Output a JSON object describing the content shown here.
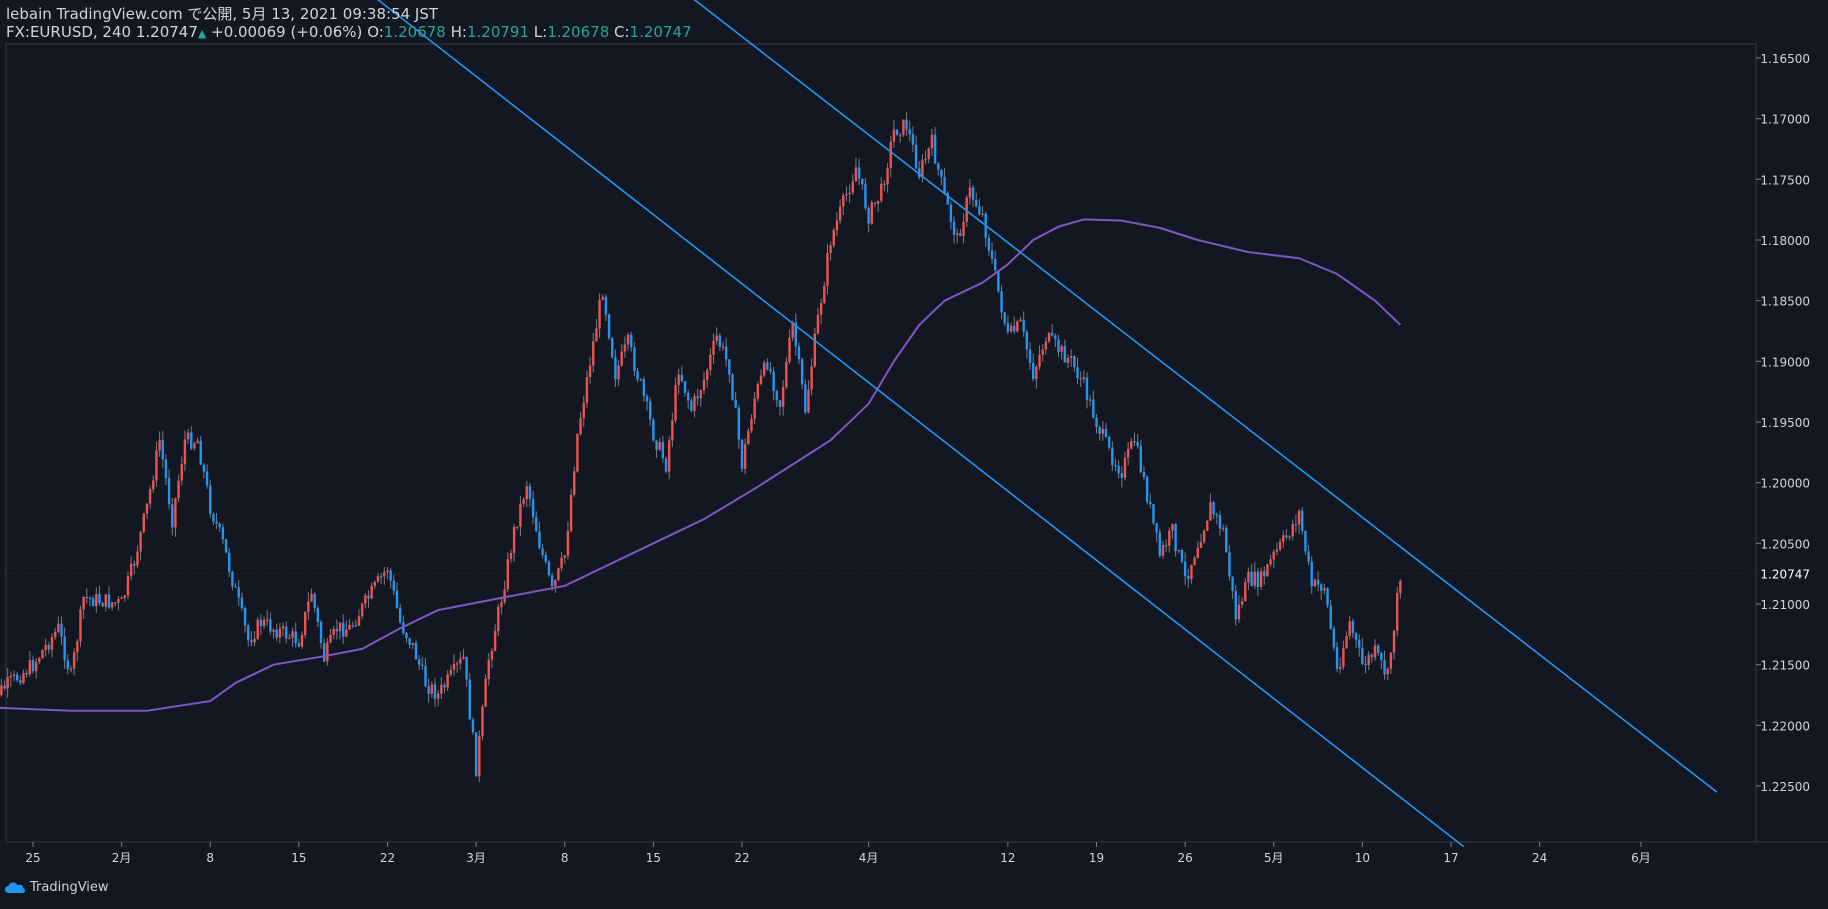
{
  "header": {
    "line1": "lebain TradingView.com で公開, 5月 13, 2021 09:38:54 JST",
    "symbol": "FX:EURUSD, 240",
    "last": "1.20747",
    "change": "+0.00069 (+0.06%)",
    "o_label": "O:",
    "o_value": "1.20678",
    "h_label": "H:",
    "h_value": "1.20791",
    "l_label": "L:",
    "l_value": "1.20678",
    "c_label": "C:",
    "c_value": "1.20747"
  },
  "footer": {
    "brand": "TradingView"
  },
  "colors": {
    "up": "#ef5350",
    "down": "#2196f3",
    "ma": "#7e57c2",
    "trend": "#2196f3",
    "bg": "#131722",
    "price_tag": "#131722"
  },
  "chart_data": {
    "type": "candlestick",
    "y_axis": {
      "min": 1.16,
      "max": 1.23,
      "inverted": true,
      "ticks": [
        "1.16500",
        "1.17000",
        "1.17500",
        "1.18000",
        "1.18500",
        "1.19000",
        "1.19500",
        "1.20000",
        "1.20500",
        "1.21000",
        "1.21500",
        "1.22000",
        "1.22500"
      ]
    },
    "current_price": "1.20747",
    "x_axis": {
      "labels": [
        {
          "label": "25",
          "date": "2021-01-25"
        },
        {
          "label": "2月",
          "date": "2021-02-01"
        },
        {
          "label": "8",
          "date": "2021-02-08"
        },
        {
          "label": "15",
          "date": "2021-02-15"
        },
        {
          "label": "22",
          "date": "2021-02-22"
        },
        {
          "label": "3月",
          "date": "2021-03-01"
        },
        {
          "label": "8",
          "date": "2021-03-08"
        },
        {
          "label": "15",
          "date": "2021-03-15"
        },
        {
          "label": "22",
          "date": "2021-03-22"
        },
        {
          "label": "4月",
          "date": "2021-04-01"
        },
        {
          "label": "12",
          "date": "2021-04-12"
        },
        {
          "label": "19",
          "date": "2021-04-19"
        },
        {
          "label": "26",
          "date": "2021-04-26"
        },
        {
          "label": "5月",
          "date": "2021-05-03"
        },
        {
          "label": "10",
          "date": "2021-05-10"
        },
        {
          "label": "17",
          "date": "2021-05-17"
        },
        {
          "label": "24",
          "date": "2021-05-24"
        },
        {
          "label": "6月",
          "date": "2021-06-01"
        }
      ]
    },
    "path": [
      [
        "2021-01-21",
        1.215
      ],
      [
        "2021-01-22",
        1.2175
      ],
      [
        "2021-01-25",
        1.215
      ],
      [
        "2021-01-27",
        1.212
      ],
      [
        "2021-01-28",
        1.216
      ],
      [
        "2021-01-29",
        1.2095
      ],
      [
        "2021-02-01",
        1.21
      ],
      [
        "2021-02-02",
        1.2065
      ],
      [
        "2021-02-03",
        1.202
      ],
      [
        "2021-02-04",
        1.1965
      ],
      [
        "2021-02-05",
        1.203
      ],
      [
        "2021-02-06",
        1.1965
      ],
      [
        "2021-02-07",
        1.1965
      ],
      [
        "2021-02-08",
        1.202
      ],
      [
        "2021-02-09",
        1.205
      ],
      [
        "2021-02-10",
        1.209
      ],
      [
        "2021-02-11",
        1.213
      ],
      [
        "2021-02-12",
        1.2115
      ],
      [
        "2021-02-15",
        1.213
      ],
      [
        "2021-02-16",
        1.209
      ],
      [
        "2021-02-17",
        1.2145
      ],
      [
        "2021-02-18",
        1.212
      ],
      [
        "2021-02-19",
        1.212
      ],
      [
        "2021-02-22",
        1.207
      ],
      [
        "2021-02-23",
        1.2115
      ],
      [
        "2021-02-24",
        1.2135
      ],
      [
        "2021-02-25",
        1.2165
      ],
      [
        "2021-02-26",
        1.2175
      ],
      [
        "2021-02-28",
        1.2145
      ],
      [
        "2021-03-01",
        1.2235
      ],
      [
        "2021-03-02",
        1.2145
      ],
      [
        "2021-03-03",
        1.2095
      ],
      [
        "2021-03-04",
        1.204
      ],
      [
        "2021-03-05",
        1.2
      ],
      [
        "2021-03-06",
        1.205
      ],
      [
        "2021-03-07",
        1.209
      ],
      [
        "2021-03-08",
        1.206
      ],
      [
        "2021-03-09",
        1.196
      ],
      [
        "2021-03-10",
        1.19
      ],
      [
        "2021-03-11",
        1.184
      ],
      [
        "2021-03-12",
        1.191
      ],
      [
        "2021-03-13",
        1.1885
      ],
      [
        "2021-03-14",
        1.192
      ],
      [
        "2021-03-15",
        1.196
      ],
      [
        "2021-03-16",
        1.1985
      ],
      [
        "2021-03-17",
        1.1905
      ],
      [
        "2021-03-18",
        1.194
      ],
      [
        "2021-03-19",
        1.1915
      ],
      [
        "2021-03-20",
        1.188
      ],
      [
        "2021-03-21",
        1.1905
      ],
      [
        "2021-03-22",
        1.1985
      ],
      [
        "2021-03-23",
        1.193
      ],
      [
        "2021-03-24",
        1.19
      ],
      [
        "2021-03-25",
        1.1935
      ],
      [
        "2021-03-26",
        1.187
      ],
      [
        "2021-03-27",
        1.194
      ],
      [
        "2021-03-28",
        1.1865
      ],
      [
        "2021-03-29",
        1.18
      ],
      [
        "2021-03-30",
        1.177
      ],
      [
        "2021-03-31",
        1.174
      ],
      [
        "2021-04-01",
        1.178
      ],
      [
        "2021-04-02",
        1.176
      ],
      [
        "2021-04-03",
        1.171
      ],
      [
        "2021-04-04",
        1.1705
      ],
      [
        "2021-04-05",
        1.1745
      ],
      [
        "2021-04-06",
        1.172
      ],
      [
        "2021-04-07",
        1.1765
      ],
      [
        "2021-04-08",
        1.18
      ],
      [
        "2021-04-09",
        1.176
      ],
      [
        "2021-04-10",
        1.178
      ],
      [
        "2021-04-11",
        1.183
      ],
      [
        "2021-04-12",
        1.188
      ],
      [
        "2021-04-13",
        1.187
      ],
      [
        "2021-04-14",
        1.191
      ],
      [
        "2021-04-15",
        1.188
      ],
      [
        "2021-04-16",
        1.189
      ],
      [
        "2021-04-17",
        1.19
      ],
      [
        "2021-04-18",
        1.192
      ],
      [
        "2021-04-19",
        1.195
      ],
      [
        "2021-04-20",
        1.1975
      ],
      [
        "2021-04-21",
        1.199
      ],
      [
        "2021-04-22",
        1.1965
      ],
      [
        "2021-04-23",
        1.201
      ],
      [
        "2021-04-24",
        1.206
      ],
      [
        "2021-04-25",
        1.204
      ],
      [
        "2021-04-26",
        1.208
      ],
      [
        "2021-04-27",
        1.205
      ],
      [
        "2021-04-28",
        1.202
      ],
      [
        "2021-04-29",
        1.204
      ],
      [
        "2021-04-30",
        1.211
      ],
      [
        "2021-05-01",
        1.208
      ],
      [
        "2021-05-02",
        1.208
      ],
      [
        "2021-05-03",
        1.206
      ],
      [
        "2021-05-04",
        1.2045
      ],
      [
        "2021-05-05",
        1.2025
      ],
      [
        "2021-05-06",
        1.2085
      ],
      [
        "2021-05-07",
        1.2085
      ],
      [
        "2021-05-08",
        1.2155
      ],
      [
        "2021-05-09",
        1.2115
      ],
      [
        "2021-05-10",
        1.215
      ],
      [
        "2021-05-11",
        1.214
      ],
      [
        "2021-05-12",
        1.216
      ],
      [
        "2021-05-13",
        1.2075
      ]
    ],
    "moving_average": [
      [
        "2021-01-21",
        1.2185
      ],
      [
        "2021-01-28",
        1.2188
      ],
      [
        "2021-02-03",
        1.2188
      ],
      [
        "2021-02-08",
        1.218
      ],
      [
        "2021-02-10",
        1.2165
      ],
      [
        "2021-02-13",
        1.215
      ],
      [
        "2021-02-17",
        1.2143
      ],
      [
        "2021-02-20",
        1.2137
      ],
      [
        "2021-02-23",
        1.212
      ],
      [
        "2021-02-26",
        1.2105
      ],
      [
        "2021-03-03",
        1.2095
      ],
      [
        "2021-03-08",
        1.2085
      ],
      [
        "2021-03-11",
        1.207
      ],
      [
        "2021-03-15",
        1.205
      ],
      [
        "2021-03-19",
        1.203
      ],
      [
        "2021-03-23",
        1.2005
      ],
      [
        "2021-03-26",
        1.1985
      ],
      [
        "2021-03-29",
        1.1965
      ],
      [
        "2021-04-01",
        1.1935
      ],
      [
        "2021-04-03",
        1.19
      ],
      [
        "2021-04-05",
        1.187
      ],
      [
        "2021-04-07",
        1.185
      ],
      [
        "2021-04-10",
        1.1835
      ],
      [
        "2021-04-12",
        1.182
      ],
      [
        "2021-04-14",
        1.18
      ],
      [
        "2021-04-16",
        1.1789
      ],
      [
        "2021-04-18",
        1.1783
      ],
      [
        "2021-04-21",
        1.1784
      ],
      [
        "2021-04-24",
        1.179
      ],
      [
        "2021-04-27",
        1.18
      ],
      [
        "2021-05-01",
        1.181
      ],
      [
        "2021-05-05",
        1.1815
      ],
      [
        "2021-05-08",
        1.1828
      ],
      [
        "2021-05-11",
        1.185
      ],
      [
        "2021-05-13",
        1.187
      ]
    ],
    "trend_lines": [
      {
        "from": [
          "2021-03-18",
          1.16
        ],
        "to": [
          "2021-06-07",
          1.2255
        ]
      },
      {
        "from": [
          "2021-02-21",
          1.16
        ],
        "to": [
          "2021-05-18",
          1.23
        ]
      }
    ]
  }
}
